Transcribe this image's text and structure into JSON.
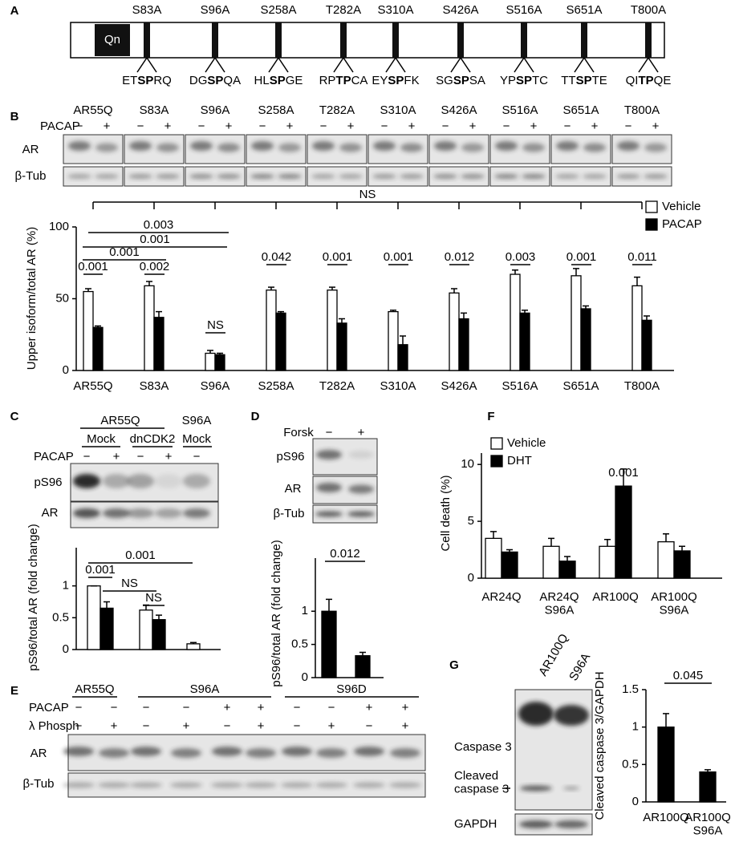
{
  "panel_labels": [
    "A",
    "B",
    "C",
    "D",
    "E",
    "F",
    "G"
  ],
  "schematic": {
    "domain": "Qn",
    "sites": [
      "S83A",
      "S96A",
      "S258A",
      "T282A",
      "S310A",
      "S426A",
      "S516A",
      "S651A",
      "T800A"
    ],
    "motifs": [
      {
        "pre": "ET",
        "core": "SP",
        "post": "RQ"
      },
      {
        "pre": "DG",
        "core": "SP",
        "post": "QA"
      },
      {
        "pre": "HL",
        "core": "SP",
        "post": "GE"
      },
      {
        "pre": "RP",
        "core": "TP",
        "post": "CA"
      },
      {
        "pre": "EY",
        "core": "SP",
        "post": "FK"
      },
      {
        "pre": "SG",
        "core": "SP",
        "post": "SA"
      },
      {
        "pre": "YP",
        "core": "SP",
        "post": "TC"
      },
      {
        "pre": "TT",
        "core": "SP",
        "post": "TE"
      },
      {
        "pre": "QI",
        "core": "TP",
        "post": "QE"
      }
    ]
  },
  "blot_b": {
    "lanes": [
      "AR55Q",
      "S83A",
      "S96A",
      "S258A",
      "T282A",
      "S310A",
      "S426A",
      "S516A",
      "S651A",
      "T800A"
    ],
    "treatment": "PACAP",
    "minus": "−",
    "plus": "+",
    "rows": [
      "AR",
      "β-Tub"
    ]
  },
  "blot_c": {
    "groups": [
      "AR55Q",
      "S96A"
    ],
    "subgroups": [
      "Mock",
      "dnCDK2",
      "Mock"
    ],
    "treatment": "PACAP",
    "signs": [
      "−",
      "+",
      "−",
      "+",
      "−"
    ],
    "rows": [
      "pS96",
      "AR"
    ]
  },
  "blot_d": {
    "treatment": "Forsk",
    "signs": [
      "−",
      "+"
    ],
    "rows": [
      "pS96",
      "AR",
      "β-Tub"
    ]
  },
  "blot_e": {
    "groups": [
      "AR55Q",
      "S96A",
      "S96D"
    ],
    "treatments": [
      {
        "name": "PACAP",
        "signs": [
          "−",
          "−",
          "−",
          "−",
          "+",
          "+",
          "−",
          "−",
          "+",
          "+"
        ]
      },
      {
        "name": "λ Phosph",
        "signs": [
          "−",
          "+",
          "−",
          "+",
          "−",
          "+",
          "−",
          "+",
          "−",
          "+"
        ]
      }
    ],
    "rows": [
      "AR",
      "β-Tub"
    ]
  },
  "blot_g": {
    "lanes": [
      "AR100Q",
      "S96A"
    ],
    "rows": [
      "Caspase 3",
      "Cleaved\ncaspase 3",
      "GAPDH"
    ]
  },
  "chart_data": [
    {
      "type": "bar",
      "y_label": "Upper isoform/total AR (%)",
      "categories": [
        "AR55Q",
        "S83A",
        "S96A",
        "S258A",
        "T282A",
        "S310A",
        "S426A",
        "S516A",
        "S651A",
        "T800A"
      ],
      "series": [
        {
          "name": "Vehicle",
          "color": "#ffffff",
          "values": [
            55,
            59,
            12,
            56,
            56,
            41,
            54,
            67,
            66,
            59
          ],
          "errors": [
            2,
            3,
            2,
            2,
            2,
            1,
            3,
            3,
            5,
            6
          ]
        },
        {
          "name": "PACAP",
          "color": "#000000",
          "values": [
            30,
            37,
            11,
            40,
            33,
            18,
            36,
            40,
            43,
            35
          ],
          "errors": [
            1,
            4,
            1,
            1,
            3,
            6,
            4,
            2,
            2,
            3
          ]
        }
      ],
      "ylim": [
        0,
        100
      ],
      "yticks": [
        0,
        50,
        100
      ],
      "annotations": [
        "0.003",
        "0.001",
        "0.001",
        "0.001",
        "0.002",
        "NS",
        "0.042",
        "0.001",
        "0.001",
        "0.012",
        "0.003",
        "0.001",
        "0.011",
        "NS"
      ],
      "legend": "top-right"
    },
    {
      "type": "bar",
      "y_label": "pS96/total AR (fold change)",
      "categories": [
        null,
        null,
        null
      ],
      "series": [
        {
          "color": "#ffffff",
          "values": [
            1,
            0.62,
            0.09
          ],
          "errors": [
            0,
            0.08,
            0.02
          ]
        },
        {
          "color": "#000000",
          "values": [
            0.65,
            0.47,
            null
          ],
          "errors": [
            0.1,
            0.07,
            null
          ]
        }
      ],
      "ylim": [
        0,
        1.6
      ],
      "yticks": [
        0,
        0.5,
        1
      ],
      "annotations": [
        "0.001",
        "0.001",
        "NS",
        "NS"
      ]
    },
    {
      "type": "bar",
      "y_label": "pS96/total AR (fold change)",
      "categories": [
        null,
        null
      ],
      "series": [
        {
          "color": "#000000",
          "values": [
            1,
            0.33
          ],
          "errors": [
            0.18,
            0.05
          ]
        }
      ],
      "ylim": [
        0,
        1.8
      ],
      "yticks": [
        0,
        0.5,
        1
      ],
      "annotations": [
        "0.012"
      ]
    },
    {
      "type": "bar",
      "y_label": "Cell death (%)",
      "categories": [
        "AR24Q",
        "AR24Q\nS96A",
        "AR100Q",
        "AR100Q\nS96A"
      ],
      "series": [
        {
          "name": "Vehicle",
          "color": "#ffffff",
          "values": [
            3.5,
            2.8,
            2.8,
            3.2
          ],
          "errors": [
            0.6,
            0.7,
            0.6,
            0.7
          ]
        },
        {
          "name": "DHT",
          "color": "#000000",
          "values": [
            2.3,
            1.5,
            8.1,
            2.4
          ],
          "errors": [
            0.2,
            0.4,
            1.5,
            0.4
          ]
        }
      ],
      "ylim": [
        0,
        11
      ],
      "yticks": [
        0,
        5,
        10
      ],
      "annotations": [
        "0.001"
      ],
      "legend": "top-left"
    },
    {
      "type": "bar",
      "y_label": "Cleaved caspase 3/GAPDH",
      "categories": [
        "AR100Q",
        "AR100Q\nS96A"
      ],
      "series": [
        {
          "color": "#000000",
          "values": [
            1,
            0.4
          ],
          "errors": [
            0.18,
            0.03
          ]
        }
      ],
      "ylim": [
        0,
        1.5
      ],
      "yticks": [
        0,
        0.5,
        1,
        1.5
      ],
      "annotations": [
        "0.045"
      ]
    }
  ]
}
